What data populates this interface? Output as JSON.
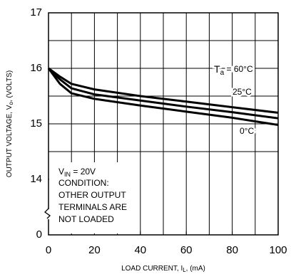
{
  "chart_data": {
    "type": "line",
    "xlabel": [
      "LOAD CURRENT, I",
      "L",
      ", (mA)"
    ],
    "ylabel": [
      "OUTPUT VOLTAGE, V",
      "o",
      ", (VOLTS)"
    ],
    "x": [
      0,
      5,
      10,
      20,
      40,
      60,
      80,
      100
    ],
    "series": [
      {
        "name": "60°C",
        "color": "#000000",
        "values": [
          16,
          15.85,
          15.72,
          15.62,
          15.5,
          15.4,
          15.3,
          15.2
        ]
      },
      {
        "name": "25°C",
        "color": "#000000",
        "values": [
          16,
          15.8,
          15.64,
          15.53,
          15.42,
          15.31,
          15.21,
          15.1
        ]
      },
      {
        "name": "0°C",
        "color": "#000000",
        "values": [
          16,
          15.72,
          15.55,
          15.45,
          15.33,
          15.22,
          15.11,
          14.98
        ]
      }
    ],
    "series_label_prefix": [
      "T",
      "a",
      " = "
    ],
    "annotation": {
      "first": [
        "V",
        "IN",
        " = 20V"
      ],
      "lines": [
        "CONDITION:",
        "OTHER OUTPUT",
        "TERMINALS ARE",
        "NOT LOADED"
      ]
    },
    "xlim": [
      0,
      100
    ],
    "xticks": [
      0,
      20,
      40,
      60,
      80,
      100
    ],
    "ylim": [
      0,
      17
    ],
    "yticks": [
      0,
      14,
      15,
      16,
      17
    ],
    "ybreak": [
      0,
      14
    ],
    "xgrid": [
      10,
      20,
      30,
      40,
      50,
      60,
      70,
      80,
      90
    ],
    "ygrid": [
      14.5,
      15,
      15.5,
      16,
      16.5
    ],
    "grid": true
  }
}
